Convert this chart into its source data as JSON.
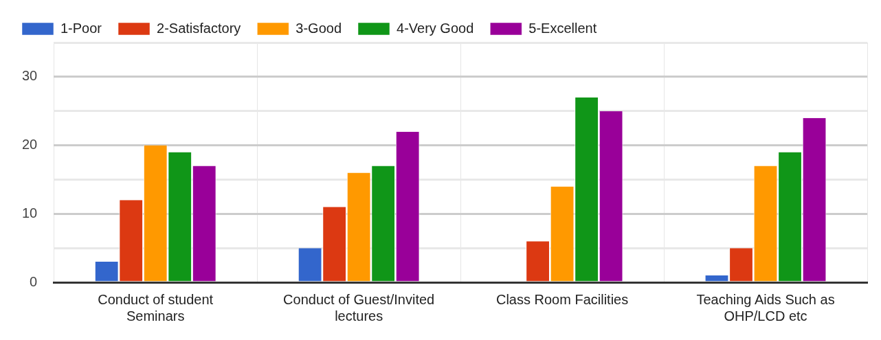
{
  "chart_data": {
    "type": "bar",
    "categories": [
      "Conduct of student Seminars",
      "Conduct of Guest/Invited lectures",
      "Class Room Facilities",
      "Teaching Aids Such as OHP/LCD etc"
    ],
    "series": [
      {
        "name": "1-Poor",
        "color": "#3366cc",
        "values": [
          3,
          5,
          0,
          1
        ]
      },
      {
        "name": "2-Satisfactory",
        "color": "#dc3912",
        "values": [
          12,
          11,
          6,
          5
        ]
      },
      {
        "name": "3-Good",
        "color": "#ff9900",
        "values": [
          20,
          16,
          14,
          17
        ]
      },
      {
        "name": "4-Very Good",
        "color": "#109618",
        "values": [
          19,
          17,
          27,
          19
        ]
      },
      {
        "name": "5-Excellent",
        "color": "#990099",
        "values": [
          17,
          22,
          25,
          24
        ]
      }
    ],
    "ylim": [
      0,
      35
    ],
    "yticks": [
      0,
      {
        "value": 5,
        "label": null
      },
      10,
      {
        "value": 15,
        "label": null
      },
      20,
      {
        "value": 25,
        "label": null
      },
      30,
      {
        "value": 35,
        "label": null
      }
    ],
    "grid": true,
    "legend": "top left"
  }
}
